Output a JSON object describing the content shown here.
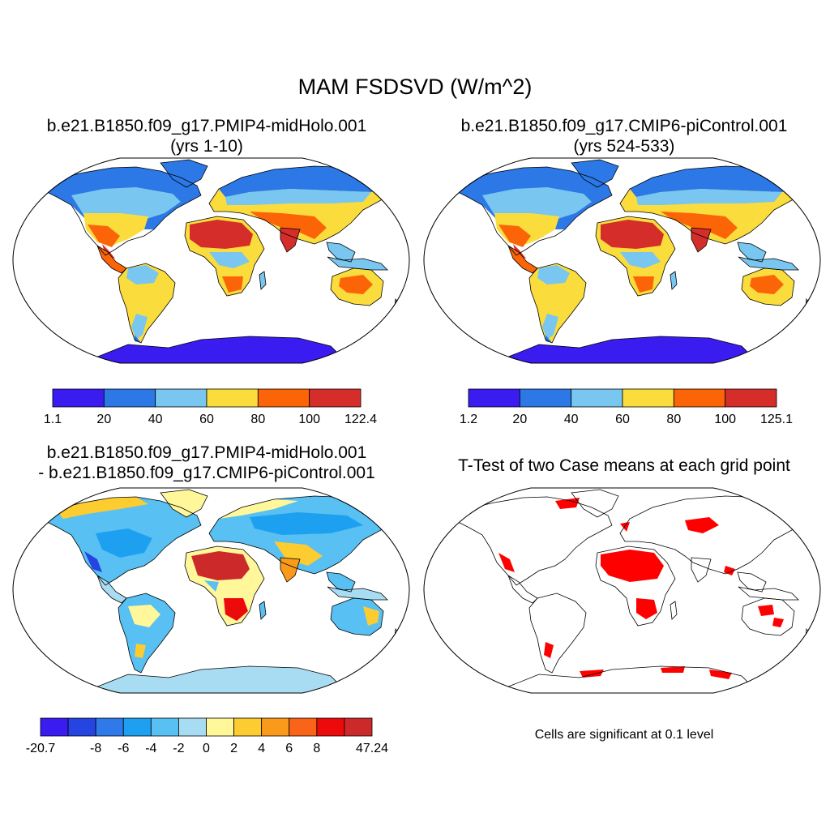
{
  "title": "MAM FSDSVD (W/m^2)",
  "panels": [
    {
      "id": "case1",
      "title_line1": "b.e21.B1850.f09_g17.PMIP4-midHolo.001",
      "title_line2": "(yrs 1-10)",
      "colorbar": {
        "colors": [
          "#3a1cf0",
          "#2b78e6",
          "#79c6f0",
          "#fadd3c",
          "#fb6508",
          "#d42d2a"
        ],
        "labels": [
          "1.1",
          "20",
          "40",
          "60",
          "80",
          "100",
          "122.4"
        ]
      }
    },
    {
      "id": "case2",
      "title_line1": "b.e21.B1850.f09_g17.CMIP6-piControl.001",
      "title_line2": "(yrs 524-533)",
      "colorbar": {
        "colors": [
          "#3a1cf0",
          "#2b78e6",
          "#79c6f0",
          "#fadd3c",
          "#fb6508",
          "#d42d2a"
        ],
        "labels": [
          "1.2",
          "20",
          "40",
          "60",
          "80",
          "100",
          "125.1"
        ]
      }
    },
    {
      "id": "difference",
      "title_line1": "b.e21.B1850.f09_g17.PMIP4-midHolo.001",
      "title_line2": "- b.e21.B1850.f09_g17.CMIP6-piControl.001",
      "colorbar": {
        "colors": [
          "#3a1cf0",
          "#2544e0",
          "#2f7ae8",
          "#1ea0f0",
          "#58c0f2",
          "#a8dcf2",
          "#fff79a",
          "#fccc30",
          "#f99a1a",
          "#f96418",
          "#ec0a0a",
          "#cc2a2a"
        ],
        "labels": [
          "-20.7",
          "",
          "-8",
          "-6",
          "-4",
          "-2",
          "0",
          "2",
          "4",
          "6",
          "8",
          "",
          "47.24"
        ]
      }
    },
    {
      "id": "ttest",
      "title_line1": "T-Test of two Case means at each grid point",
      "note": "Cells are significant at 0.1 level",
      "significant_color": "#ff0000"
    }
  ]
}
